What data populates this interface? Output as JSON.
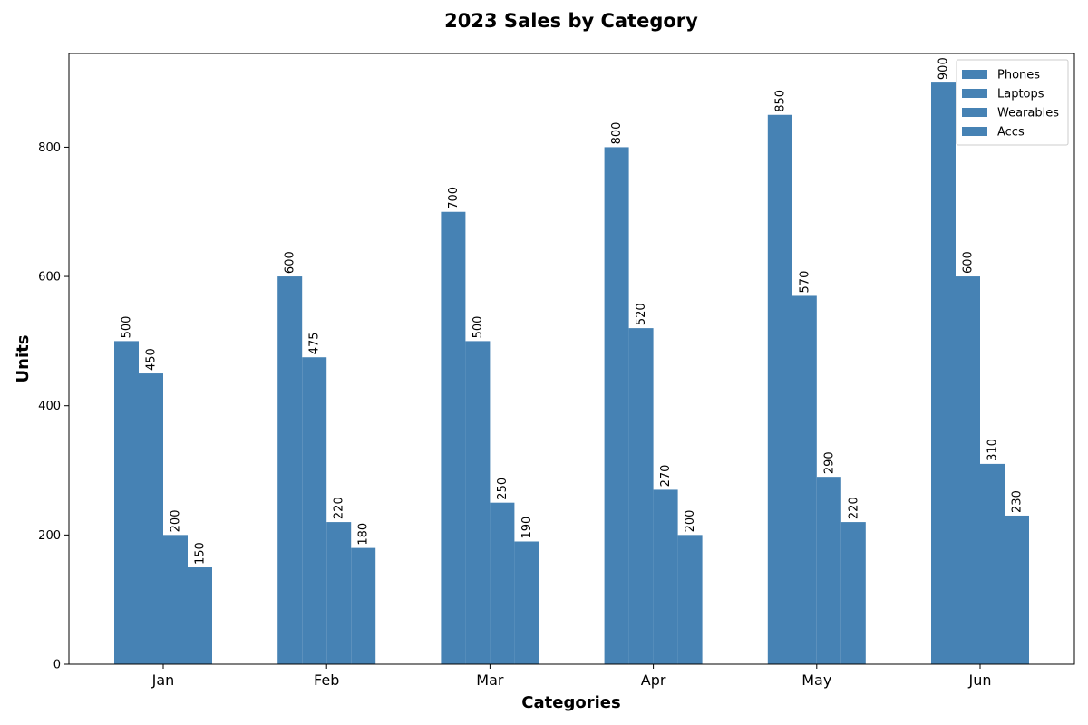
{
  "chart_data": {
    "type": "bar",
    "title": "2023 Sales by Category",
    "xlabel": "Categories",
    "ylabel": "Units",
    "categories": [
      "Jan",
      "Feb",
      "Mar",
      "Apr",
      "May",
      "Jun"
    ],
    "series": [
      {
        "name": "Phones",
        "values": [
          500,
          600,
          700,
          800,
          850,
          900
        ]
      },
      {
        "name": "Laptops",
        "values": [
          450,
          475,
          500,
          520,
          570,
          600
        ]
      },
      {
        "name": "Wearables",
        "values": [
          200,
          220,
          250,
          270,
          290,
          310
        ]
      },
      {
        "name": "Accs",
        "values": [
          150,
          180,
          190,
          200,
          220,
          230
        ]
      }
    ],
    "yticks": [
      "0",
      "200",
      "400",
      "600",
      "800"
    ],
    "ylim": [
      0,
      945
    ],
    "bar_color": "#4682b4",
    "legend_position": "top-right",
    "grid": false,
    "data_labels": true
  }
}
